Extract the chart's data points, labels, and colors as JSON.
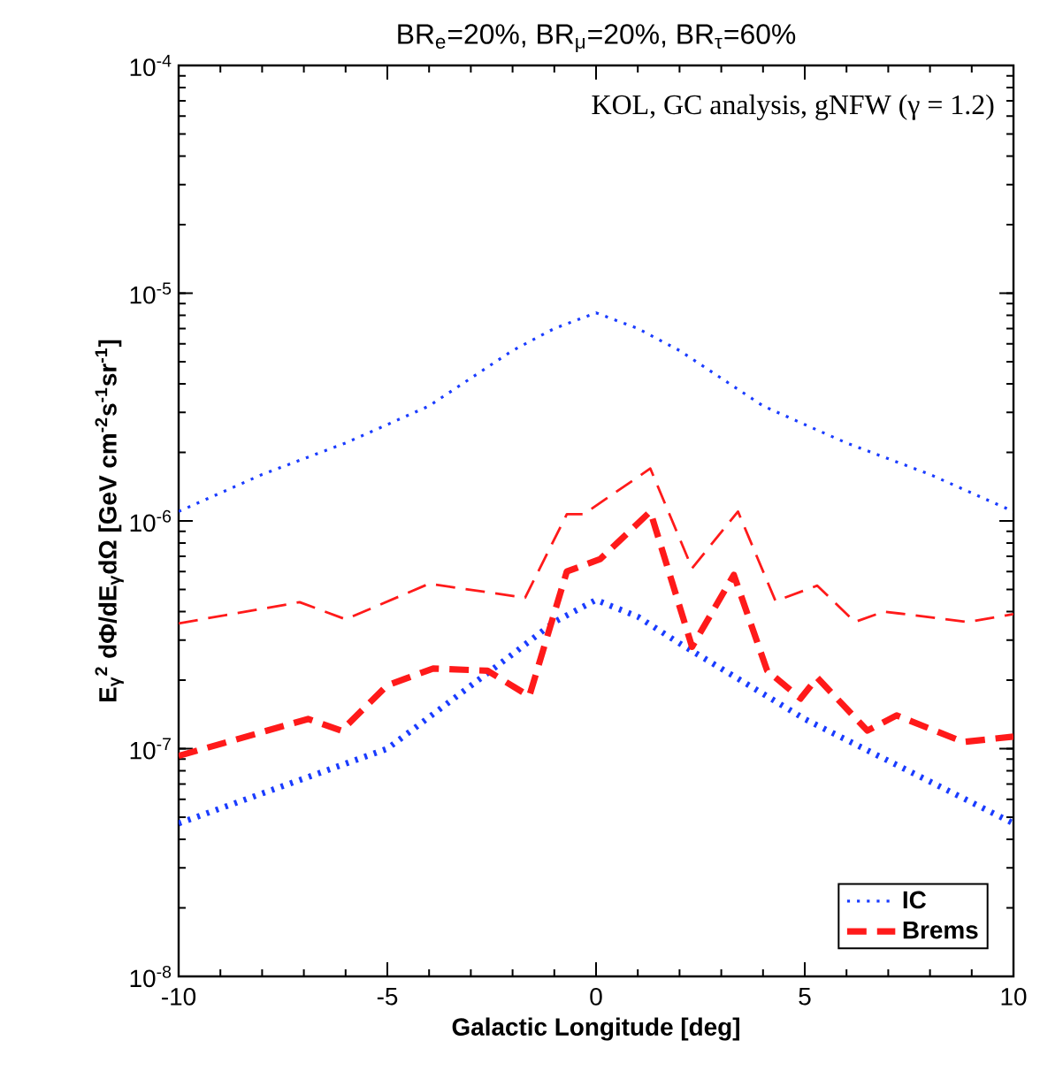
{
  "chart_data": {
    "type": "line",
    "title": "BR$_{e}$=20%, BR$_{μ}$=20%, BR$_{τ}$=60%",
    "xlabel": "Galactic Longitude [deg]",
    "ylabel": "E$_{γ}$$^{2}$ dΦ/dE$_{γ}$dΩ [GeV cm$^{-2}$s$^{-1}$sr$^{-1}$]",
    "annotations": [
      "KOL, GC analysis, gNFW (γ = 1.2)"
    ],
    "log": "y",
    "xlim": [
      -10,
      10
    ],
    "ylim": [
      1e-08,
      0.0001
    ],
    "xticks": [
      -10,
      -5,
      0,
      5,
      10
    ],
    "yticks": [
      {
        "value": 1e-08,
        "label": "10$^{-8}$"
      },
      {
        "value": 1e-07,
        "label": "10$^{-7}$"
      },
      {
        "value": 1e-06,
        "label": "10$^{-6}$"
      },
      {
        "value": 1e-05,
        "label": "10$^{-5}$"
      },
      {
        "value": 0.0001,
        "label": "10$^{-4}$"
      }
    ],
    "legend": "bottom right",
    "grid": false,
    "series": [
      {
        "name": "IC",
        "color": "#1a3cff",
        "line_style": "dotted",
        "x": [
          -10,
          -8,
          -6,
          -5,
          -4,
          -2,
          -1,
          0,
          1,
          2,
          4,
          5,
          6,
          8,
          10
        ],
        "values": [
          1.1e-06,
          1.6e-06,
          2.2e-06,
          2.65e-06,
          3.2e-06,
          5.6e-06,
          7e-06,
          8.2e-06,
          7e-06,
          5.6e-06,
          3.2e-06,
          2.65e-06,
          2.2e-06,
          1.6e-06,
          1.1e-06
        ]
      },
      {
        "color": "#1a3cff",
        "line_style": "dotted",
        "x": [
          -10,
          -5,
          -2,
          -1,
          0,
          1,
          2,
          5,
          10
        ],
        "values": [
          4.7e-08,
          1e-07,
          2.6e-07,
          3.6e-07,
          4.5e-07,
          3.8e-07,
          2.9e-07,
          1.35e-07,
          4.7e-08
        ]
      },
      {
        "color": "#ff1a1a",
        "line_style": "dashed",
        "x": [
          -10,
          -7.1,
          -6,
          -4,
          -1.7,
          -0.7,
          -0.3,
          1.3,
          2.3,
          3.4,
          4.3,
          5.3,
          6.2,
          6.9,
          8.9,
          10
        ],
        "values": [
          3.55e-07,
          4.4e-07,
          3.7e-07,
          5.3e-07,
          4.6e-07,
          1.07e-06,
          1.07e-06,
          1.7e-06,
          6.2e-07,
          1.1e-06,
          4.45e-07,
          5.2e-07,
          3.6e-07,
          4e-07,
          3.6e-07,
          3.9e-07
        ]
      },
      {
        "name": "Brems",
        "color": "#ff1a1a",
        "line_style": "dashed",
        "x": [
          -10,
          -6.9,
          -6.1,
          -5,
          -3.9,
          -2.6,
          -1.6,
          -0.7,
          0.1,
          1.3,
          2.3,
          3.3,
          4.1,
          4.9,
          5.3,
          6.5,
          7.2,
          8.8,
          10
        ],
        "values": [
          9.3e-08,
          1.35e-07,
          1.2e-07,
          1.9e-07,
          2.25e-07,
          2.2e-07,
          1.7e-07,
          6e-07,
          6.8e-07,
          1.1e-06,
          2.8e-07,
          5.8e-07,
          2.2e-07,
          1.66e-07,
          2.05e-07,
          1.2e-07,
          1.4e-07,
          1.07e-07,
          1.13e-07
        ]
      }
    ]
  }
}
